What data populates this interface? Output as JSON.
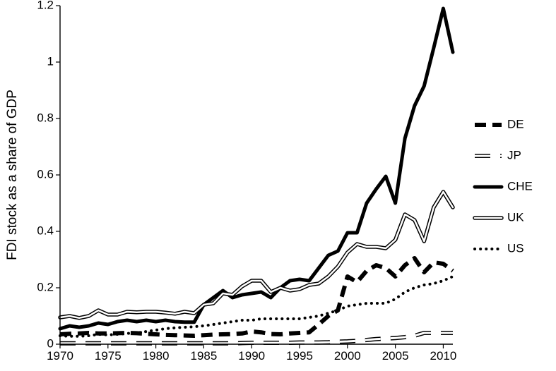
{
  "chart_data": {
    "type": "line",
    "title": "",
    "xlabel": "",
    "ylabel": "FDI stock as a share of GDP",
    "xlim": [
      1970,
      2011
    ],
    "ylim": [
      0,
      1.2
    ],
    "x_ticks": [
      1970,
      1975,
      1980,
      1985,
      1990,
      1995,
      2000,
      2005,
      2010
    ],
    "y_ticks": [
      0,
      0.2,
      0.4,
      0.6,
      0.8,
      1,
      1.2
    ],
    "y_tick_labels": [
      "0",
      "0.2",
      "0.4",
      "0.6",
      "0.8",
      "1",
      "1.2"
    ],
    "grid": false,
    "legend": "right",
    "x": [
      1970,
      1971,
      1972,
      1973,
      1974,
      1975,
      1976,
      1977,
      1978,
      1979,
      1980,
      1981,
      1982,
      1983,
      1984,
      1985,
      1986,
      1987,
      1988,
      1989,
      1990,
      1991,
      1992,
      1993,
      1994,
      1995,
      1996,
      1997,
      1998,
      1999,
      2000,
      2001,
      2002,
      2003,
      2004,
      2005,
      2006,
      2007,
      2008,
      2009,
      2010,
      2011
    ],
    "series": [
      {
        "name": "DE",
        "style": "dashed-thick",
        "values": [
          0.035,
          0.037,
          0.038,
          0.04,
          0.038,
          0.038,
          0.039,
          0.04,
          0.039,
          0.037,
          0.035,
          0.033,
          0.032,
          0.031,
          0.03,
          0.032,
          0.034,
          0.035,
          0.036,
          0.038,
          0.045,
          0.042,
          0.036,
          0.035,
          0.038,
          0.04,
          0.042,
          0.07,
          0.1,
          0.12,
          0.24,
          0.22,
          0.26,
          0.28,
          0.27,
          0.24,
          0.28,
          0.305,
          0.255,
          0.29,
          0.285,
          0.26
        ]
      },
      {
        "name": "JP",
        "style": "dashed-double",
        "values": [
          0.003,
          0.003,
          0.003,
          0.003,
          0.003,
          0.003,
          0.003,
          0.003,
          0.003,
          0.003,
          0.003,
          0.003,
          0.003,
          0.003,
          0.003,
          0.003,
          0.003,
          0.003,
          0.003,
          0.004,
          0.005,
          0.005,
          0.005,
          0.005,
          0.005,
          0.006,
          0.006,
          0.006,
          0.007,
          0.009,
          0.01,
          0.012,
          0.015,
          0.018,
          0.02,
          0.022,
          0.025,
          0.03,
          0.04,
          0.04,
          0.04,
          0.04
        ]
      },
      {
        "name": "CHE",
        "style": "solid-thick",
        "values": [
          0.055,
          0.065,
          0.06,
          0.065,
          0.075,
          0.07,
          0.08,
          0.085,
          0.08,
          0.085,
          0.08,
          0.085,
          0.08,
          0.078,
          0.078,
          0.14,
          0.165,
          0.19,
          0.165,
          0.175,
          0.18,
          0.185,
          0.165,
          0.2,
          0.225,
          0.23,
          0.225,
          0.27,
          0.315,
          0.33,
          0.395,
          0.395,
          0.5,
          0.55,
          0.595,
          0.5,
          0.73,
          0.845,
          0.915,
          1.05,
          1.19,
          1.035
        ]
      },
      {
        "name": "UK",
        "style": "double",
        "values": [
          0.095,
          0.1,
          0.093,
          0.1,
          0.12,
          0.105,
          0.105,
          0.115,
          0.113,
          0.115,
          0.115,
          0.112,
          0.108,
          0.115,
          0.11,
          0.14,
          0.145,
          0.18,
          0.175,
          0.205,
          0.225,
          0.225,
          0.185,
          0.2,
          0.19,
          0.195,
          0.21,
          0.215,
          0.24,
          0.275,
          0.325,
          0.355,
          0.345,
          0.345,
          0.34,
          0.37,
          0.46,
          0.44,
          0.365,
          0.485,
          0.54,
          0.485
        ]
      },
      {
        "name": "US",
        "style": "dotted",
        "values": [
          0.03,
          0.028,
          0.028,
          0.03,
          0.035,
          0.033,
          0.035,
          0.038,
          0.04,
          0.045,
          0.05,
          0.055,
          0.058,
          0.06,
          0.062,
          0.065,
          0.07,
          0.075,
          0.08,
          0.085,
          0.085,
          0.09,
          0.09,
          0.09,
          0.09,
          0.09,
          0.095,
          0.1,
          0.11,
          0.12,
          0.135,
          0.14,
          0.145,
          0.145,
          0.145,
          0.16,
          0.185,
          0.2,
          0.21,
          0.215,
          0.225,
          0.24
        ]
      }
    ]
  }
}
